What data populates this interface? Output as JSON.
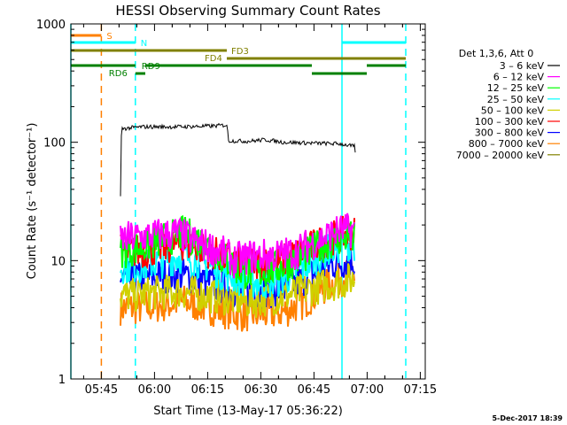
{
  "chart_data": {
    "type": "line",
    "title": "HESSI Observing Summary Count Rates",
    "xlabel": "Start Time (13-May-17 05:36:22)",
    "ylabel": "Count Rate (s⁻¹ detector⁻¹)",
    "yscale": "log",
    "ylim": [
      1,
      1000
    ],
    "yticks": [
      "1",
      "10",
      "100",
      "1000"
    ],
    "xlim_minutes_after_start": [
      0,
      100
    ],
    "xticks": [
      {
        "label": "05:45",
        "minute": 8.6
      },
      {
        "label": "06:00",
        "minute": 23.6
      },
      {
        "label": "06:15",
        "minute": 38.6
      },
      {
        "label": "06:30",
        "minute": 53.6
      },
      {
        "label": "06:45",
        "minute": 68.6
      },
      {
        "label": "07:00",
        "minute": 83.6
      },
      {
        "label": "07:15",
        "minute": 98.6
      }
    ],
    "legend_title": "Det 1,3,6, Att 0",
    "legend_position": "right",
    "series": [
      {
        "name": "3 - 6 keV",
        "color": "#000000",
        "start": 14,
        "end": 80,
        "points": [
          [
            14,
            35
          ],
          [
            14.3,
            130
          ],
          [
            20,
            135
          ],
          [
            30,
            135
          ],
          [
            40,
            137
          ],
          [
            44,
            140
          ],
          [
            44.5,
            103
          ],
          [
            50,
            102
          ],
          [
            55,
            105
          ],
          [
            60,
            100
          ],
          [
            70,
            98
          ],
          [
            76,
            97
          ],
          [
            80,
            92
          ],
          [
            80.3,
            80
          ]
        ]
      },
      {
        "name": "6 - 12 keV",
        "color": "#ff00ff",
        "start": 14,
        "end": 80,
        "points": [
          [
            14,
            15
          ],
          [
            20,
            16
          ],
          [
            30,
            17
          ],
          [
            36,
            14
          ],
          [
            42,
            12
          ],
          [
            46,
            10
          ],
          [
            52,
            11
          ],
          [
            58,
            11
          ],
          [
            64,
            12
          ],
          [
            70,
            15
          ],
          [
            76,
            18
          ],
          [
            80,
            18
          ]
        ]
      },
      {
        "name": "12 - 25 keV",
        "color": "#00ff00",
        "start": 14,
        "end": 80,
        "points": [
          [
            14,
            12
          ],
          [
            20,
            13
          ],
          [
            26,
            15
          ],
          [
            32,
            17
          ],
          [
            36,
            15
          ],
          [
            42,
            11
          ],
          [
            48,
            8
          ],
          [
            54,
            8
          ],
          [
            60,
            9
          ],
          [
            66,
            11
          ],
          [
            72,
            14
          ],
          [
            78,
            16
          ],
          [
            80,
            15
          ]
        ]
      },
      {
        "name": "25 - 50 keV",
        "color": "#00ffff",
        "start": 14,
        "end": 80,
        "points": [
          [
            14,
            9
          ],
          [
            20,
            9
          ],
          [
            26,
            10
          ],
          [
            32,
            11
          ],
          [
            36,
            10
          ],
          [
            42,
            8
          ],
          [
            48,
            7
          ],
          [
            54,
            6.5
          ],
          [
            60,
            7
          ],
          [
            66,
            9
          ],
          [
            72,
            12
          ],
          [
            78,
            14
          ],
          [
            80,
            14
          ]
        ]
      },
      {
        "name": "50 - 100 keV",
        "color": "#d0d000",
        "start": 14,
        "end": 80,
        "points": [
          [
            14,
            5
          ],
          [
            20,
            5.2
          ],
          [
            30,
            5.5
          ],
          [
            40,
            5
          ],
          [
            50,
            4.5
          ],
          [
            60,
            5
          ],
          [
            70,
            6
          ],
          [
            80,
            7
          ]
        ]
      },
      {
        "name": "100 - 300 keV",
        "color": "#ff0000",
        "start": 14,
        "end": 80,
        "points": [
          [
            14,
            12
          ],
          [
            20,
            12
          ],
          [
            26,
            13
          ],
          [
            32,
            14
          ],
          [
            36,
            13
          ],
          [
            42,
            11
          ],
          [
            48,
            9.5
          ],
          [
            54,
            9.5
          ],
          [
            60,
            10
          ],
          [
            66,
            12
          ],
          [
            72,
            15
          ],
          [
            78,
            17
          ],
          [
            80,
            17
          ]
        ]
      },
      {
        "name": "300 - 800 keV",
        "color": "#0000ff",
        "start": 14,
        "end": 80,
        "points": [
          [
            14,
            7
          ],
          [
            20,
            7
          ],
          [
            26,
            7.5
          ],
          [
            32,
            7.5
          ],
          [
            36,
            7
          ],
          [
            42,
            6
          ],
          [
            48,
            5.5
          ],
          [
            54,
            5.5
          ],
          [
            60,
            5.8
          ],
          [
            66,
            7
          ],
          [
            72,
            9
          ],
          [
            78,
            10
          ],
          [
            80,
            10
          ]
        ]
      },
      {
        "name": "800 - 7000 keV",
        "color": "#ff8000",
        "start": 14,
        "end": 80,
        "points": [
          [
            14,
            4
          ],
          [
            20,
            4
          ],
          [
            26,
            4.2
          ],
          [
            32,
            4.5
          ],
          [
            36,
            4.2
          ],
          [
            42,
            3.8
          ],
          [
            48,
            3.5
          ],
          [
            54,
            3.5
          ],
          [
            60,
            3.7
          ],
          [
            66,
            4.5
          ],
          [
            72,
            6
          ],
          [
            78,
            7.5
          ],
          [
            80,
            7.5
          ]
        ]
      },
      {
        "name": "7000 - 20000 keV",
        "color": "#808000",
        "start": 14,
        "end": 80,
        "points": []
      }
    ],
    "state_bars": [
      {
        "label": "S",
        "color": "#ff8000",
        "segments": [
          [
            0,
            8.6
          ]
        ]
      },
      {
        "label": "N",
        "color": "#00ffff",
        "segments": [
          [
            0,
            18.2
          ],
          [
            76.5,
            94.5
          ]
        ]
      },
      {
        "label": "FD3",
        "color": "#808000",
        "segments": [
          [
            0,
            44
          ]
        ]
      },
      {
        "label": "FD4",
        "color": "#808000",
        "segments": [
          [
            44,
            94.5
          ]
        ]
      },
      {
        "label": "RD9",
        "color": "#008000",
        "segments": [
          [
            0,
            18.2
          ],
          [
            21,
            68
          ],
          [
            83.5,
            94.5
          ]
        ]
      },
      {
        "label": "RD6",
        "color": "#008000",
        "segments": [
          [
            18.2,
            21
          ],
          [
            68,
            83.5
          ]
        ]
      }
    ],
    "vertical_markers": [
      {
        "minute": 0,
        "color": "#00ffff",
        "style": "solid"
      },
      {
        "minute": 8.6,
        "color": "#ff8000",
        "style": "dashed"
      },
      {
        "minute": 18.2,
        "color": "#00ffff",
        "style": "dashed"
      },
      {
        "minute": 76.5,
        "color": "#00ffff",
        "style": "solid"
      },
      {
        "minute": 94.5,
        "color": "#00ffff",
        "style": "dashed"
      }
    ]
  },
  "footer": {
    "timestamp": "5-Dec-2017 18:39"
  }
}
